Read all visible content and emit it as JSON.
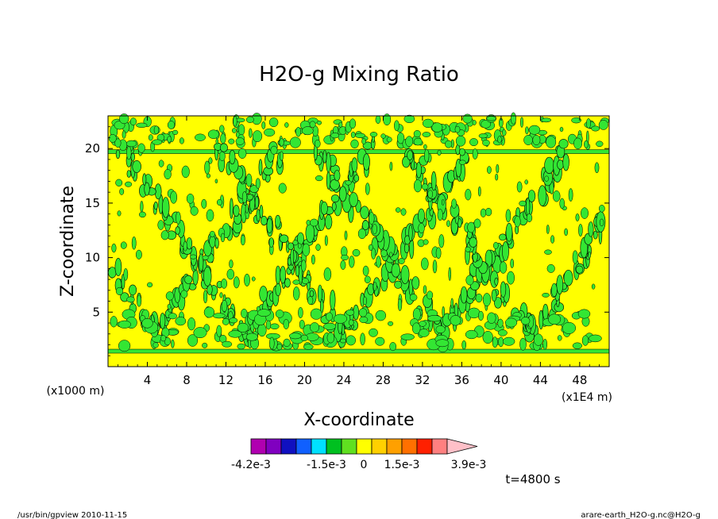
{
  "chart_data": {
    "type": "heatmap",
    "title": "H2O-g Mixing Ratio",
    "xlabel": "X-coordinate",
    "ylabel": "Z-coordinate",
    "x_unit": "(x1E4 m)",
    "y_unit": "(x1000 m)",
    "xlim": [
      0,
      51
    ],
    "ylim": [
      0,
      23
    ],
    "x_ticks": [
      "4",
      "8",
      "12",
      "16",
      "20",
      "24",
      "28",
      "32",
      "36",
      "40",
      "44",
      "48"
    ],
    "y_ticks": [
      "5",
      "10",
      "15",
      "20"
    ],
    "colorbar": {
      "colors": [
        "#b000b0",
        "#8000c0",
        "#1010c0",
        "#1060ff",
        "#00e0ff",
        "#00c020",
        "#60e020",
        "#ffff00",
        "#ffd000",
        "#ffa000",
        "#ff7000",
        "#ff2000",
        "#ff8080",
        "#ffc0c8"
      ],
      "labels": [
        "-4.2e-3",
        "-1.5e-3",
        "0",
        "1.5e-3",
        "3.9e-3"
      ]
    },
    "time_label": "t=4800 s",
    "dominant_color": "#ffff00",
    "anomaly_color": "#33e633",
    "grid": false
  },
  "footer": {
    "left": "/usr/bin/gpview   2010-11-15",
    "right": "arare-earth_H2O-g.nc@H2O-g"
  }
}
